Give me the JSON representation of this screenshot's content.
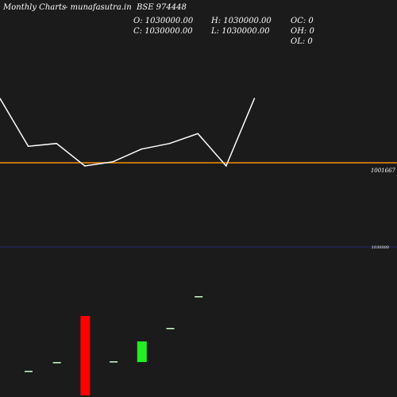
{
  "header": {
    "left": "Monthly Charts",
    "source": "- munafasutra.in",
    "symbol": "BSE 974448"
  },
  "ohlc": {
    "open": "O: 1030000.00",
    "high": "H: 1030000.00",
    "close": "C: 1030000.00",
    "low": "L: 1030000.00",
    "oc": "OC: 0",
    "oh": "OH: 0",
    "ol": "OL: 0"
  },
  "colors": {
    "background": "#1b1b1b",
    "line": "#ffffff",
    "reference_line": "#ff8c00",
    "lower_line": "#2a2a7a",
    "bar_up": "#22ee22",
    "bar_down": "#ff0000",
    "flat_bar": "#ccffcc"
  },
  "chart_data": [
    {
      "type": "line",
      "series": [
        {
          "values": [
            1,
            0.66,
            0.68,
            0.52,
            0.55,
            0.64,
            0.68,
            0.75,
            0.52,
            1
          ]
        }
      ],
      "reference_line": {
        "label": "1001667"
      }
    },
    {
      "type": "bar",
      "level_label": "1030000",
      "bars": [
        {
          "dir": "flat",
          "level": 0.31
        },
        {
          "dir": "flat",
          "level": 0.42
        },
        {
          "dir": "down",
          "bottom": 0,
          "top": 1
        },
        {
          "dir": "flat",
          "level": 0.43
        },
        {
          "dir": "up",
          "bottom": 0.42,
          "top": 0.68
        },
        {
          "dir": "flat",
          "level": 0.85
        },
        {
          "dir": "flat",
          "level": 1.25
        }
      ]
    }
  ]
}
